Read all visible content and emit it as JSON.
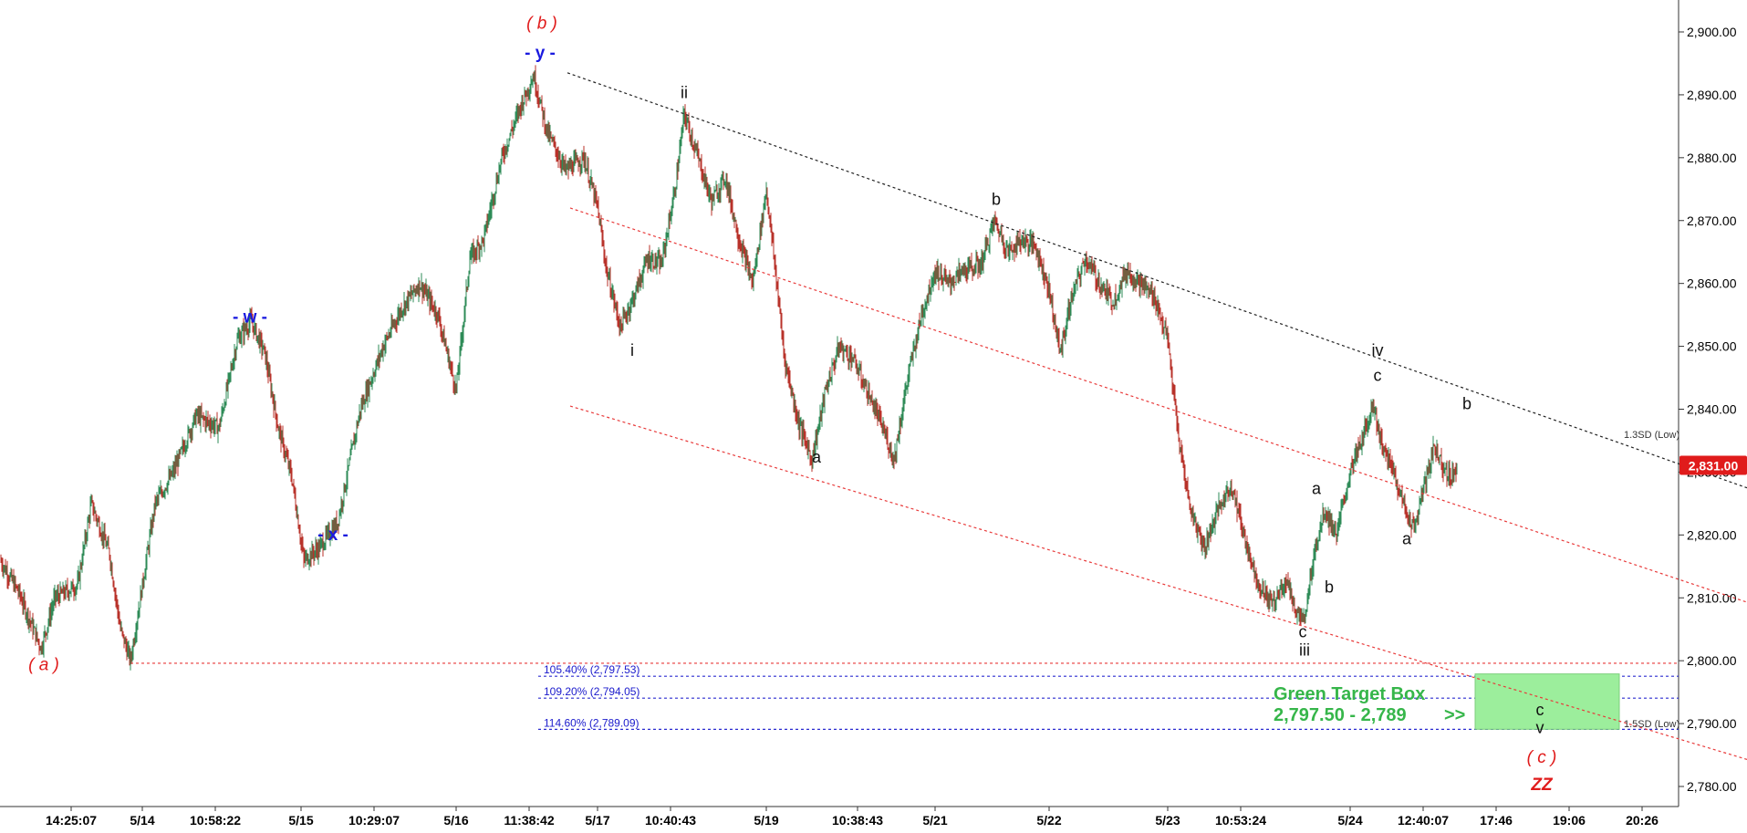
{
  "chart_data": {
    "type": "line",
    "ylim": [
      2776,
      2904
    ],
    "yticks": [
      "2,780.00",
      "2,790.00",
      "2,800.00",
      "2,810.00",
      "2,820.00",
      "2,830.00",
      "2,840.00",
      "2,850.00",
      "2,860.00",
      "2,870.00",
      "2,880.00",
      "2,890.00",
      "2,900.00"
    ],
    "ytick_values": [
      2780,
      2790,
      2800,
      2810,
      2820,
      2830,
      2840,
      2850,
      2860,
      2870,
      2880,
      2890,
      2900
    ],
    "xticks": [
      "14:25:07",
      "5/14",
      "10:58:22",
      "5/15",
      "10:29:07",
      "5/16",
      "11:38:42",
      "5/17",
      "10:40:43",
      "5/19",
      "10:38:43",
      "5/21",
      "5/22",
      "5/23",
      "10:53:24",
      "5/24",
      "12:40:07",
      "17:46",
      "19:06",
      "20:26"
    ],
    "xtick_bars": [
      78,
      156,
      236,
      330,
      410,
      500,
      580,
      655,
      735,
      840,
      940,
      1025,
      1150,
      1280,
      1360,
      1480,
      1560,
      1640,
      1720,
      1800
    ],
    "current_price": {
      "label": "2,831.00",
      "value": 2831
    },
    "price_path": [
      [
        0,
        2816
      ],
      [
        20,
        2811
      ],
      [
        45,
        2802
      ],
      [
        60,
        2810
      ],
      [
        85,
        2812
      ],
      [
        100,
        2825
      ],
      [
        120,
        2817
      ],
      [
        132,
        2805
      ],
      [
        143,
        2800
      ],
      [
        156,
        2812
      ],
      [
        170,
        2825
      ],
      [
        190,
        2830
      ],
      [
        215,
        2839
      ],
      [
        240,
        2837
      ],
      [
        260,
        2851
      ],
      [
        275,
        2854
      ],
      [
        290,
        2849
      ],
      [
        305,
        2837
      ],
      [
        320,
        2829
      ],
      [
        333,
        2816
      ],
      [
        350,
        2818
      ],
      [
        370,
        2822
      ],
      [
        395,
        2840
      ],
      [
        420,
        2850
      ],
      [
        440,
        2856
      ],
      [
        460,
        2860
      ],
      [
        480,
        2855
      ],
      [
        500,
        2843
      ],
      [
        515,
        2864
      ],
      [
        530,
        2867
      ],
      [
        550,
        2880
      ],
      [
        570,
        2888
      ],
      [
        585,
        2893
      ],
      [
        600,
        2884
      ],
      [
        620,
        2878
      ],
      [
        640,
        2880
      ],
      [
        655,
        2872
      ],
      [
        665,
        2862
      ],
      [
        680,
        2853
      ],
      [
        695,
        2858
      ],
      [
        710,
        2864
      ],
      [
        725,
        2863
      ],
      [
        740,
        2875
      ],
      [
        750,
        2887
      ],
      [
        765,
        2880
      ],
      [
        780,
        2873
      ],
      [
        795,
        2877
      ],
      [
        810,
        2867
      ],
      [
        825,
        2860
      ],
      [
        840,
        2875
      ],
      [
        850,
        2862
      ],
      [
        860,
        2848
      ],
      [
        875,
        2838
      ],
      [
        890,
        2832
      ],
      [
        905,
        2843
      ],
      [
        920,
        2850
      ],
      [
        935,
        2848
      ],
      [
        950,
        2843
      ],
      [
        965,
        2838
      ],
      [
        980,
        2832
      ],
      [
        995,
        2845
      ],
      [
        1010,
        2855
      ],
      [
        1025,
        2862
      ],
      [
        1040,
        2860
      ],
      [
        1055,
        2862
      ],
      [
        1075,
        2863
      ],
      [
        1090,
        2870
      ],
      [
        1105,
        2865
      ],
      [
        1120,
        2867
      ],
      [
        1135,
        2866
      ],
      [
        1150,
        2859
      ],
      [
        1162,
        2849
      ],
      [
        1175,
        2858
      ],
      [
        1190,
        2864
      ],
      [
        1205,
        2860
      ],
      [
        1220,
        2857
      ],
      [
        1235,
        2862
      ],
      [
        1250,
        2860
      ],
      [
        1265,
        2858
      ],
      [
        1280,
        2851
      ],
      [
        1292,
        2835
      ],
      [
        1305,
        2824
      ],
      [
        1320,
        2818
      ],
      [
        1335,
        2824
      ],
      [
        1350,
        2828
      ],
      [
        1365,
        2819
      ],
      [
        1380,
        2812
      ],
      [
        1395,
        2809
      ],
      [
        1410,
        2813
      ],
      [
        1420,
        2808
      ],
      [
        1430,
        2806
      ],
      [
        1440,
        2817
      ],
      [
        1452,
        2824
      ],
      [
        1465,
        2820
      ],
      [
        1480,
        2830
      ],
      [
        1495,
        2836
      ],
      [
        1505,
        2841
      ],
      [
        1515,
        2834
      ],
      [
        1528,
        2830
      ],
      [
        1540,
        2824
      ],
      [
        1550,
        2821
      ],
      [
        1560,
        2827
      ],
      [
        1572,
        2834
      ],
      [
        1582,
        2831
      ],
      [
        1590,
        2829
      ],
      [
        1597,
        2831
      ]
    ],
    "annotations": {
      "black": [
        {
          "text": "ii",
          "bar": 750,
          "y": 2889.5
        },
        {
          "text": "i",
          "bar": 693,
          "y": 2848.5
        },
        {
          "text": "a",
          "bar": 895,
          "y": 2831.5
        },
        {
          "text": "b",
          "bar": 1092,
          "y": 2872.5
        },
        {
          "text": "iv",
          "bar": 1510,
          "y": 2848.5
        },
        {
          "text": "c",
          "bar": 1510,
          "y": 2844.5
        },
        {
          "text": "b",
          "bar": 1608,
          "y": 2840
        },
        {
          "text": "a",
          "bar": 1443,
          "y": 2826.5
        },
        {
          "text": "a",
          "bar": 1542,
          "y": 2818.5
        },
        {
          "text": "b",
          "bar": 1457,
          "y": 2810.8
        },
        {
          "text": "c",
          "bar": 1428,
          "y": 2803.7
        },
        {
          "text": "iii",
          "bar": 1430,
          "y": 2800.8
        },
        {
          "text": "c",
          "bar": 1688,
          "y": 2791.3
        },
        {
          "text": "v",
          "bar": 1688,
          "y": 2788.5
        }
      ],
      "red": [
        {
          "text": "( b )",
          "bar": 594,
          "y": 2900.5
        },
        {
          "text": "( a )",
          "bar": 48,
          "y": 2798.5
        },
        {
          "text": "( c )",
          "bar": 1690,
          "y": 2783.8
        },
        {
          "text": "ZZ",
          "bar": 1690,
          "y": 2779.4
        }
      ],
      "blue": [
        {
          "text": "- y -",
          "bar": 592,
          "y": 2895.8
        },
        {
          "text": "- w -",
          "bar": 274,
          "y": 2853.8
        },
        {
          "text": "- x -",
          "bar": 365,
          "y": 2819.2
        }
      ]
    },
    "trendlines": [
      {
        "style": "black-dotted",
        "points": [
          [
            622,
            2893.5
          ],
          [
            1915,
            2827.5
          ]
        ],
        "label": "1.3SD (Low)"
      },
      {
        "style": "red-dotted",
        "points": [
          [
            625,
            2872
          ],
          [
            1915,
            2809.3
          ]
        ]
      },
      {
        "style": "red-dotted",
        "points": [
          [
            625,
            2840.5
          ],
          [
            1915,
            2784.3
          ]
        ],
        "label": "1.5SD (Low)"
      }
    ],
    "horizontal_lines": [
      {
        "style": "red-dotted",
        "y": 2799.6,
        "from_bar": 143
      },
      {
        "style": "blue-dotted",
        "y": 2797.53,
        "from_bar": 590,
        "label": "105.40% (2,797.53)"
      },
      {
        "style": "blue-dotted",
        "y": 2794.05,
        "from_bar": 590,
        "label": "109.20% (2,794.05)"
      },
      {
        "style": "blue-dotted",
        "y": 2789.09,
        "from_bar": 590,
        "label": "114.60% (2,789.09)"
      }
    ],
    "target_box": {
      "y_top": 2797.9,
      "y_bottom": 2789.1,
      "from_bar": 1617,
      "to_bar": 1775,
      "title": "Green Target Box",
      "range": "2,797.50 - 2,789",
      "arrow": ">>"
    }
  }
}
